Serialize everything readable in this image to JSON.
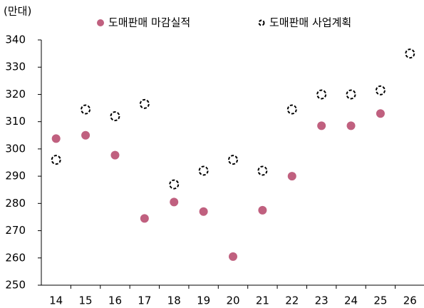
{
  "chart_data": {
    "type": "scatter",
    "y_unit_label": "(만대)",
    "categories": [
      "14",
      "15",
      "16",
      "17",
      "18",
      "19",
      "20",
      "21",
      "22",
      "23",
      "24",
      "25",
      "26"
    ],
    "series": [
      {
        "name": "도매판매 마감실적",
        "color": "#c0607f",
        "marker": "filled",
        "values": [
          303.8,
          305,
          297.7,
          274.5,
          280.5,
          277,
          260.5,
          277.5,
          290,
          308.5,
          308.5,
          313,
          null
        ]
      },
      {
        "name": "도매판매 사업계획",
        "color": "#000000",
        "marker": "dashed",
        "values": [
          296,
          314.5,
          312,
          316.5,
          287,
          292,
          296,
          292,
          314.5,
          320,
          320,
          321.5,
          335
        ]
      }
    ],
    "ylim": [
      250,
      340
    ],
    "yticks": [
      250,
      260,
      270,
      280,
      290,
      300,
      310,
      320,
      330,
      340
    ],
    "grid": false
  }
}
